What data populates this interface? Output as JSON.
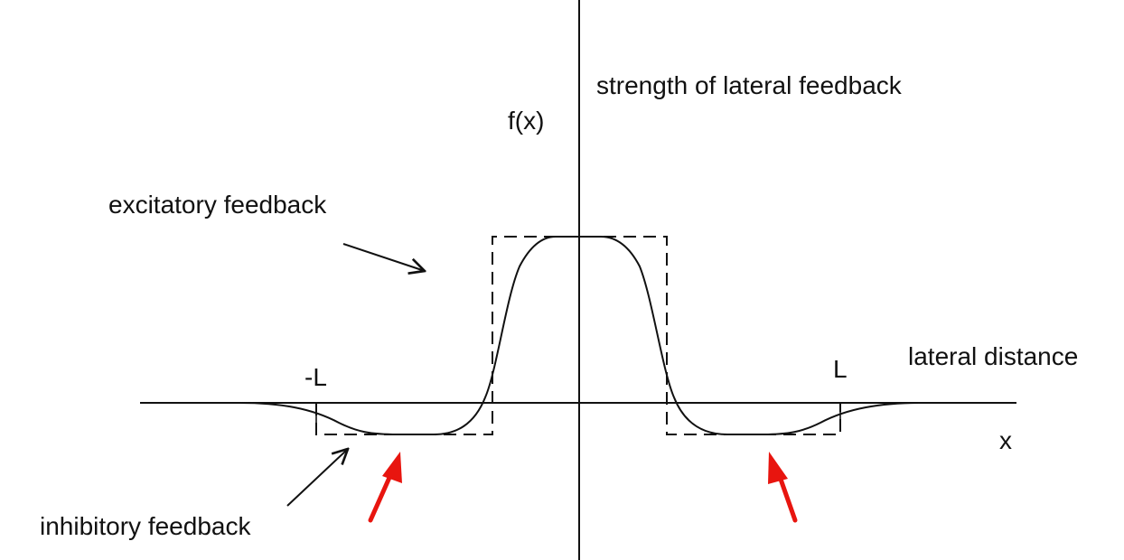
{
  "labels": {
    "y_axis_caption": "strength of lateral feedback",
    "y_axis_symbol": "f(x)",
    "x_axis_caption": "lateral distance",
    "x_axis_symbol": "x",
    "minus_L": "-L",
    "plus_L": "L",
    "excitatory": "excitatory feedback",
    "inhibitory": "inhibitory feedback"
  },
  "colors": {
    "ink": "#111111",
    "highlight_arrow": "#e8150f",
    "background": "#ffffff"
  }
}
